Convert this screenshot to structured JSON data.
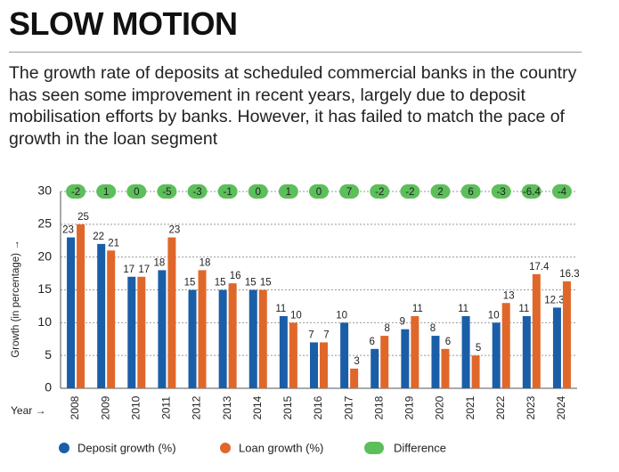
{
  "header": {
    "title": "SLOW MOTION",
    "subtitle": "The growth rate of deposits at scheduled commercial banks in the country has seen some improvement in recent years, largely due to deposit mobilisation efforts by banks. However, it has failed to match the pace of growth in the loan segment"
  },
  "chart_data": {
    "type": "bar",
    "x_label": "Year →",
    "y_label": "Growth (in percentage) →",
    "categories": [
      "2008",
      "2009",
      "2010",
      "2011",
      "2012",
      "2013",
      "2014",
      "2015",
      "2016",
      "2017",
      "2018",
      "2019",
      "2020",
      "2021",
      "2022",
      "2023",
      "2024"
    ],
    "series": [
      {
        "name": "Deposit growth (%)",
        "color": "#1a5ea8",
        "values": [
          23,
          22,
          17,
          18,
          15,
          15,
          15,
          11,
          7,
          10,
          6,
          9,
          8,
          11,
          10,
          11,
          12.3
        ]
      },
      {
        "name": "Loan growth (%)",
        "color": "#e0672a",
        "values": [
          25,
          21,
          17,
          23,
          18,
          16,
          15,
          10,
          7,
          3,
          8,
          11,
          6,
          5,
          13,
          17.4,
          16.3
        ]
      }
    ],
    "difference": {
      "name": "Difference",
      "color": "#5cbf5a",
      "values": [
        -2,
        1,
        0,
        -5,
        -3,
        -1,
        0,
        1,
        0,
        7,
        -2,
        -2,
        2,
        6,
        -3,
        -6.4,
        -4
      ]
    },
    "ylim": [
      0,
      30
    ],
    "yticks": [
      0,
      5,
      10,
      15,
      20,
      25,
      30
    ],
    "grid": true
  }
}
